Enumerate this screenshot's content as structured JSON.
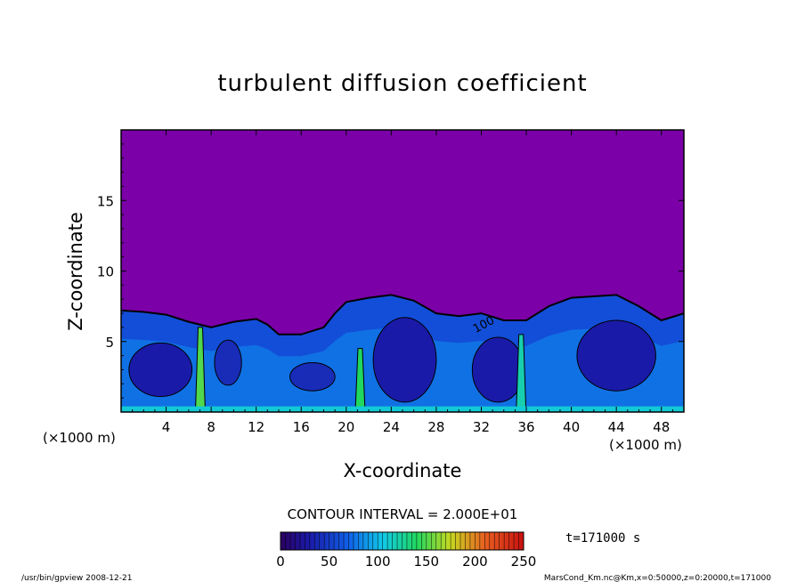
{
  "chart_data": {
    "type": "heatmap",
    "title": "turbulent diffusion coefficient",
    "xlabel": "X-coordinate",
    "ylabel": "Z-coordinate",
    "x_unit_left": "(×1000 m)",
    "x_unit_right": "(×1000 m)",
    "xlim": [
      0,
      50
    ],
    "ylim": [
      0,
      20
    ],
    "xticks": [
      4,
      8,
      12,
      16,
      20,
      24,
      28,
      32,
      36,
      40,
      44,
      48
    ],
    "yticks": [
      5,
      10,
      15
    ],
    "contour_interval": "CONTOUR INTERVAL = 2.000E+01",
    "contour_label": "100",
    "colorbar": {
      "min": 0,
      "max": 250,
      "ticks": [
        0,
        50,
        100,
        150,
        200,
        250
      ]
    },
    "time_label": "t=171000 s",
    "footer_left": "/usr/bin/gpview  2008-12-21",
    "footer_right": "MarsCond_Km.nc@Km,x=0:50000,z=0:20000,t=171000",
    "background_value": 0,
    "boundary_layer_top": [
      {
        "x": 0,
        "z": 7.2
      },
      {
        "x": 2,
        "z": 7.1
      },
      {
        "x": 4,
        "z": 6.9
      },
      {
        "x": 6,
        "z": 6.4
      },
      {
        "x": 8,
        "z": 6.0
      },
      {
        "x": 10,
        "z": 6.4
      },
      {
        "x": 12,
        "z": 6.6
      },
      {
        "x": 13,
        "z": 6.2
      },
      {
        "x": 14,
        "z": 5.5
      },
      {
        "x": 16,
        "z": 5.5
      },
      {
        "x": 18,
        "z": 6.0
      },
      {
        "x": 19,
        "z": 7.0
      },
      {
        "x": 20,
        "z": 7.8
      },
      {
        "x": 22,
        "z": 8.1
      },
      {
        "x": 24,
        "z": 8.3
      },
      {
        "x": 26,
        "z": 7.9
      },
      {
        "x": 28,
        "z": 7.0
      },
      {
        "x": 30,
        "z": 6.8
      },
      {
        "x": 32,
        "z": 7.0
      },
      {
        "x": 34,
        "z": 6.5
      },
      {
        "x": 36,
        "z": 6.5
      },
      {
        "x": 38,
        "z": 7.5
      },
      {
        "x": 40,
        "z": 8.1
      },
      {
        "x": 42,
        "z": 8.2
      },
      {
        "x": 44,
        "z": 8.3
      },
      {
        "x": 46,
        "z": 7.5
      },
      {
        "x": 48,
        "z": 6.5
      },
      {
        "x": 50,
        "z": 7.0
      }
    ],
    "inner_cells": [
      {
        "cx": 3.5,
        "cz": 3.0,
        "rx": 2.8,
        "rz": 1.9,
        "value": 30
      },
      {
        "cx": 9.5,
        "cz": 3.5,
        "rx": 1.2,
        "rz": 1.6,
        "value": 40
      },
      {
        "cx": 17,
        "cz": 2.5,
        "rx": 2.0,
        "rz": 1.0,
        "value": 40
      },
      {
        "cx": 25.2,
        "cz": 3.7,
        "rx": 2.8,
        "rz": 3.0,
        "value": 30
      },
      {
        "cx": 33.5,
        "cz": 3.0,
        "rx": 2.3,
        "rz": 2.3,
        "value": 30
      },
      {
        "cx": 44,
        "cz": 4.0,
        "rx": 3.5,
        "rz": 2.5,
        "value": 30
      }
    ],
    "updrafts": [
      {
        "x": 7.0,
        "z_top": 6.0,
        "value": 150
      },
      {
        "x": 21.2,
        "z_top": 4.5,
        "value": 140
      },
      {
        "x": 35.5,
        "z_top": 5.5,
        "value": 120
      }
    ]
  }
}
